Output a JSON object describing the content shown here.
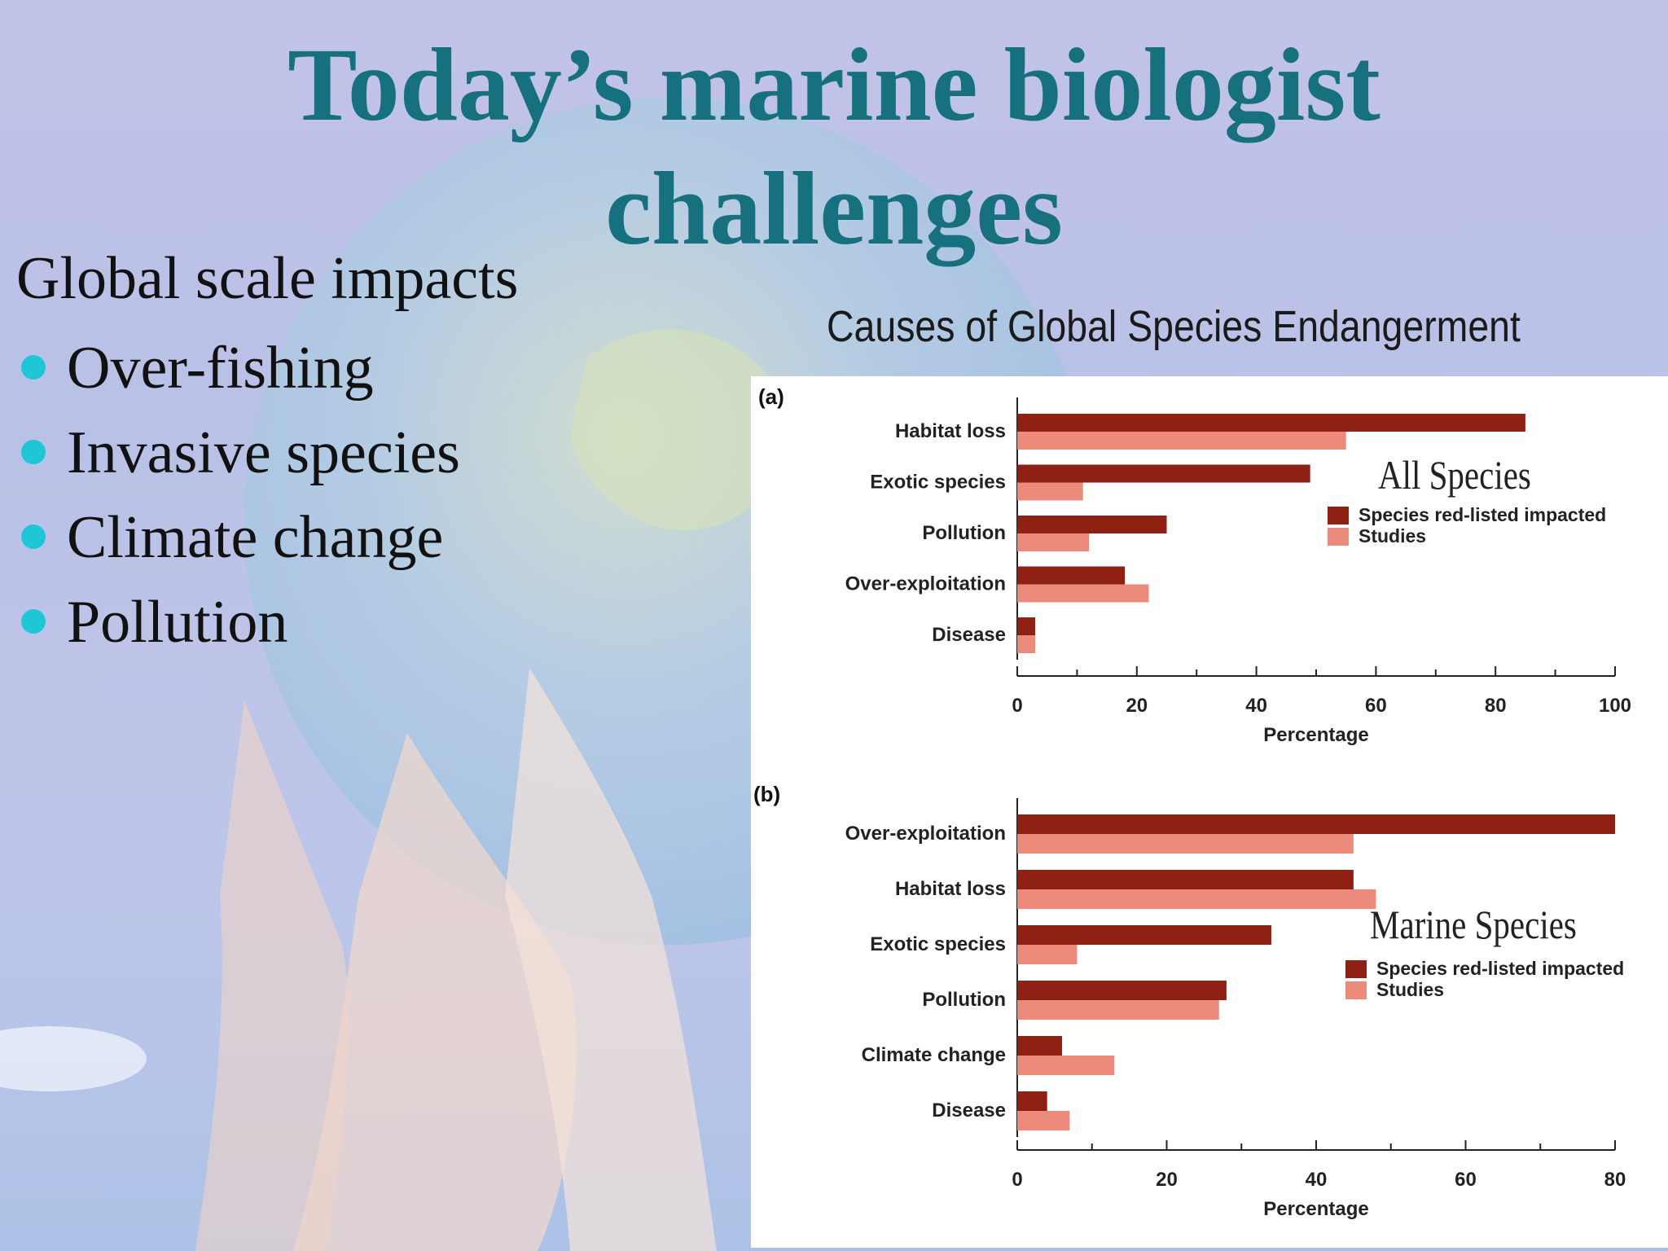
{
  "slide": {
    "title_line1": "Today’s marine biologist",
    "title_line2": "challenges",
    "subtitle": "Global scale impacts",
    "bullets": [
      "Over-fishing",
      "Invasive species",
      "Climate change",
      "Pollution"
    ]
  },
  "figure_title": "Causes of Global Species Endangerment",
  "colors": {
    "title": "#17707e",
    "bullet_dot": "#1ec6d6",
    "series_dark": "#8e2114",
    "series_light": "#ec8b7c"
  },
  "chart_data": [
    {
      "type": "bar",
      "orientation": "horizontal",
      "panel_label": "(a)",
      "annotation": "All Species",
      "categories": [
        "Habitat loss",
        "Exotic species",
        "Pollution",
        "Over-exploitation",
        "Disease"
      ],
      "series": [
        {
          "name": "Species red-listed impacted",
          "values": [
            85,
            49,
            25,
            18,
            3
          ]
        },
        {
          "name": "Studies",
          "values": [
            55,
            11,
            12,
            22,
            3
          ]
        }
      ],
      "xlabel": "Percentage",
      "xlim": [
        0,
        100
      ],
      "xticks": [
        0,
        20,
        40,
        60,
        80,
        100
      ],
      "legend": "right"
    },
    {
      "type": "bar",
      "orientation": "horizontal",
      "panel_label": "(b)",
      "annotation": "Marine Species",
      "categories": [
        "Over-exploitation",
        "Habitat loss",
        "Exotic species",
        "Pollution",
        "Climate change",
        "Disease"
      ],
      "series": [
        {
          "name": "Species red-listed impacted",
          "values": [
            80,
            45,
            34,
            28,
            6,
            4
          ]
        },
        {
          "name": "Studies",
          "values": [
            45,
            48,
            8,
            27,
            13,
            7
          ]
        }
      ],
      "xlabel": "Percentage",
      "xlim": [
        0,
        80
      ],
      "xticks": [
        0,
        20,
        40,
        60,
        80
      ],
      "legend": "right"
    }
  ]
}
